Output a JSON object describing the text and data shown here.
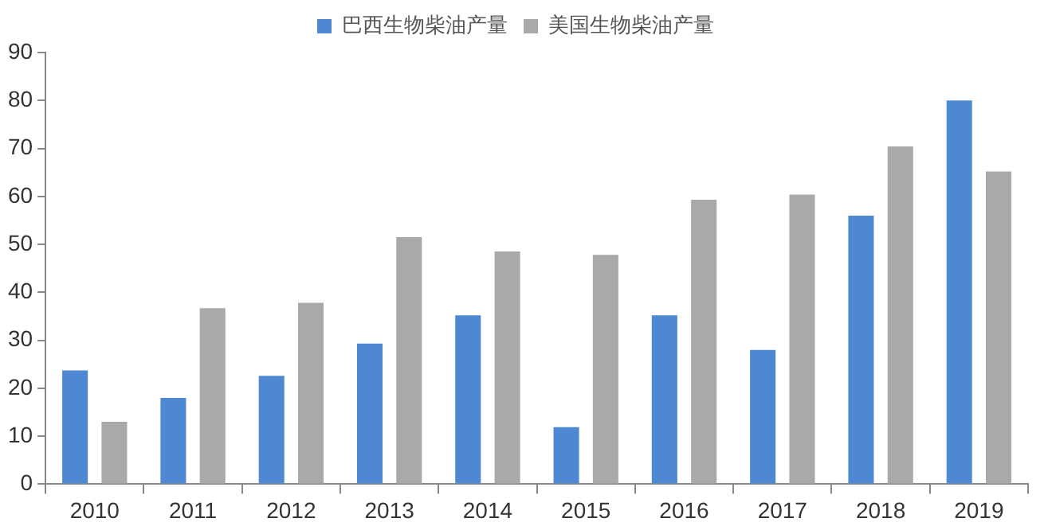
{
  "chart_data": {
    "type": "bar",
    "categories": [
      "2010",
      "2011",
      "2012",
      "2013",
      "2014",
      "2015",
      "2016",
      "2017",
      "2018",
      "2019"
    ],
    "series": [
      {
        "name": "巴西生物柴油产量",
        "color": "#4f88d2",
        "values": [
          23.7,
          18,
          22.6,
          29.3,
          35.2,
          11.9,
          35.2,
          28,
          56,
          80
        ]
      },
      {
        "name": "美国生物柴油产量",
        "color": "#a9a9a9",
        "values": [
          13,
          36.7,
          37.8,
          51.5,
          48.5,
          47.8,
          59.3,
          60.4,
          70.4,
          65.2
        ]
      }
    ],
    "ylim": [
      0,
      90
    ],
    "yticks": [
      0,
      10,
      20,
      30,
      40,
      50,
      60,
      70,
      80,
      90
    ],
    "grid": false,
    "legend": "top"
  }
}
